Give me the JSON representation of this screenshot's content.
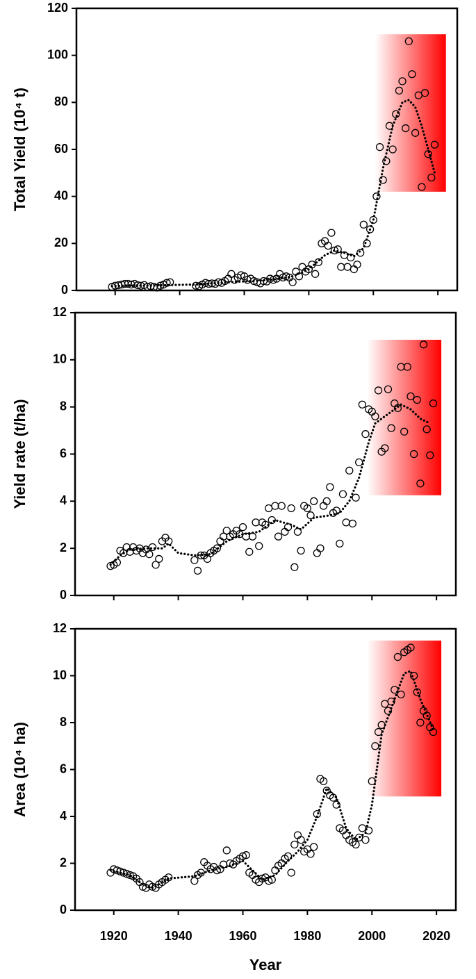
{
  "chart_data": [
    {
      "type": "scatter",
      "ylabel": "Total Yield (10⁴ t)",
      "x": [
        1919,
        1920,
        1921,
        1922,
        1923,
        1924,
        1925,
        1926,
        1927,
        1928,
        1929,
        1930,
        1931,
        1932,
        1933,
        1934,
        1935,
        1936,
        1937,
        1945,
        1946,
        1947,
        1948,
        1949,
        1950,
        1951,
        1952,
        1953,
        1954,
        1955,
        1956,
        1957,
        1958,
        1959,
        1960,
        1961,
        1962,
        1963,
        1964,
        1965,
        1966,
        1967,
        1968,
        1969,
        1970,
        1971,
        1972,
        1973,
        1974,
        1975,
        1976,
        1977,
        1978,
        1979,
        1980,
        1981,
        1982,
        1983,
        1984,
        1985,
        1986,
        1987,
        1988,
        1989,
        1990,
        1991,
        1992,
        1993,
        1994,
        1995,
        1996,
        1997,
        1998,
        1999,
        2000,
        2001,
        2002,
        2003,
        2004,
        2005,
        2006,
        2007,
        2008,
        2009,
        2010,
        2011,
        2012,
        2013,
        2014,
        2015,
        2016,
        2017,
        2018,
        2019
      ],
      "series": [
        {
          "style": "circle",
          "color": "#000000",
          "values": [
            1.5,
            2,
            2.2,
            2.5,
            2.8,
            2.8,
            2.5,
            2.8,
            2.2,
            2,
            2.3,
            1.5,
            1.8,
            1.5,
            1.2,
            2,
            2.5,
            3.2,
            3.5,
            2,
            1.8,
            2.5,
            3.2,
            2.8,
            3,
            2.8,
            3.5,
            3.2,
            4,
            5,
            7,
            4.5,
            5.5,
            6.5,
            6,
            4.5,
            5,
            4,
            3.5,
            3,
            4,
            3.8,
            5,
            4.5,
            5,
            7,
            5.5,
            6,
            5.5,
            3.5,
            8,
            6,
            10,
            8,
            9,
            11,
            7,
            12,
            20,
            21,
            19,
            24.5,
            17,
            17.5,
            10,
            15,
            10,
            14,
            9,
            11,
            16,
            28,
            20,
            26,
            30,
            40,
            61,
            47,
            55,
            70,
            60,
            75,
            85,
            89,
            69,
            106,
            92,
            67,
            83,
            44,
            84,
            58,
            48,
            62
          ]
        },
        {
          "style": "dotted",
          "color": "#000000",
          "x": [
            1919,
            1925,
            1930,
            1937,
            1945,
            1955,
            1965,
            1970,
            1975,
            1980,
            1985,
            1988,
            1991,
            1994,
            1997,
            2000,
            2003,
            2006,
            2009,
            2011,
            2013,
            2015,
            2017,
            2019
          ],
          "values": [
            1.8,
            2.2,
            2,
            2.3,
            2.5,
            3.5,
            4.2,
            4.8,
            6,
            9,
            15,
            17,
            16,
            14.5,
            18,
            30,
            52,
            70,
            80,
            81,
            78,
            70,
            60,
            50
          ]
        }
      ],
      "highlight": {
        "xlim": [
          2000.5,
          2022.5
        ],
        "ylim": [
          42,
          109
        ],
        "color": "#ff0000"
      },
      "xlim": [
        1908,
        2026
      ],
      "ylim": [
        0,
        120
      ],
      "xticks": [
        1920,
        1940,
        1960,
        1980,
        2000,
        2020
      ],
      "yticks": [
        0,
        20,
        40,
        60,
        80,
        100,
        120
      ],
      "xtick_labels": false
    },
    {
      "type": "scatter",
      "ylabel": "Yield rate (t/ha)",
      "x": [
        1919,
        1920,
        1921,
        1922,
        1923,
        1924,
        1925,
        1926,
        1927,
        1928,
        1929,
        1930,
        1931,
        1932,
        1933,
        1934,
        1935,
        1936,
        1937,
        1945,
        1946,
        1947,
        1948,
        1949,
        1950,
        1951,
        1952,
        1953,
        1954,
        1955,
        1956,
        1957,
        1958,
        1959,
        1960,
        1961,
        1962,
        1963,
        1964,
        1965,
        1966,
        1967,
        1968,
        1969,
        1970,
        1971,
        1972,
        1973,
        1974,
        1975,
        1976,
        1977,
        1978,
        1979,
        1980,
        1981,
        1982,
        1983,
        1984,
        1985,
        1986,
        1987,
        1988,
        1989,
        1990,
        1991,
        1992,
        1993,
        1994,
        1995,
        1996,
        1997,
        1998,
        1999,
        2000,
        2001,
        2002,
        2003,
        2004,
        2005,
        2006,
        2007,
        2008,
        2009,
        2010,
        2011,
        2012,
        2013,
        2014,
        2015,
        2016,
        2017,
        2018,
        2019
      ],
      "series": [
        {
          "style": "circle",
          "color": "#000000",
          "values": [
            1.25,
            1.3,
            1.4,
            1.9,
            1.8,
            2.05,
            1.85,
            2.05,
            1.9,
            2.0,
            1.8,
            1.95,
            1.75,
            2.05,
            1.3,
            1.55,
            2.3,
            2.45,
            2.3,
            1.5,
            1.05,
            1.7,
            1.7,
            1.55,
            1.8,
            1.9,
            2.0,
            2.3,
            2.5,
            2.75,
            2.5,
            2.6,
            2.75,
            2.6,
            2.9,
            2.5,
            1.85,
            2.5,
            3.1,
            2.1,
            3.1,
            3.0,
            3.7,
            3.2,
            3.8,
            2.5,
            3.8,
            2.7,
            2.9,
            3.7,
            1.2,
            2.7,
            1.9,
            3.8,
            3.7,
            3.4,
            4.0,
            1.8,
            2.0,
            3.8,
            4.0,
            4.6,
            3.5,
            3.6,
            2.2,
            4.3,
            3.1,
            5.3,
            3.05,
            4.15,
            5.65,
            8.1,
            6.85,
            7.9,
            7.8,
            7.6,
            8.7,
            6.1,
            6.25,
            8.75,
            7.1,
            8.15,
            7.95,
            9.7,
            6.95,
            9.7,
            8.45,
            6.0,
            8.3,
            4.75,
            10.65,
            7.05,
            5.95,
            8.15
          ]
        },
        {
          "style": "dotted",
          "color": "#000000",
          "x": [
            1919,
            1922,
            1925,
            1930,
            1935,
            1937,
            1940,
            1945,
            1950,
            1955,
            1960,
            1965,
            1970,
            1975,
            1978,
            1982,
            1987,
            1990,
            1993,
            1996,
            1999,
            2001,
            2003,
            2006,
            2009,
            2012,
            2015,
            2018
          ],
          "values": [
            1.3,
            1.7,
            1.95,
            2.0,
            2.0,
            2.2,
            1.8,
            1.7,
            1.75,
            2.3,
            2.6,
            2.7,
            3.2,
            3.0,
            2.8,
            3.3,
            3.4,
            3.5,
            4.0,
            5.0,
            6.5,
            7.3,
            7.5,
            7.8,
            8.1,
            7.9,
            7.5,
            7.3
          ]
        }
      ],
      "highlight": {
        "xlim": [
          1998.5,
          2021.5
        ],
        "ylim": [
          4.25,
          10.85
        ],
        "color": "#ff0000"
      },
      "xlim": [
        1908,
        2026
      ],
      "ylim": [
        0,
        12
      ],
      "xticks": [
        1920,
        1940,
        1960,
        1980,
        2000,
        2020
      ],
      "yticks": [
        0,
        2,
        4,
        6,
        8,
        10,
        12
      ],
      "xtick_labels": false
    },
    {
      "type": "scatter",
      "ylabel": "Area (10⁴ ha)",
      "xlabel": "Year",
      "x": [
        1919,
        1920,
        1921,
        1922,
        1923,
        1924,
        1925,
        1926,
        1927,
        1928,
        1929,
        1930,
        1931,
        1932,
        1933,
        1934,
        1935,
        1936,
        1937,
        1945,
        1946,
        1947,
        1948,
        1949,
        1950,
        1951,
        1952,
        1953,
        1954,
        1955,
        1956,
        1957,
        1958,
        1959,
        1960,
        1961,
        1962,
        1963,
        1964,
        1965,
        1966,
        1967,
        1968,
        1969,
        1970,
        1971,
        1972,
        1973,
        1974,
        1975,
        1976,
        1977,
        1978,
        1979,
        1980,
        1981,
        1982,
        1983,
        1984,
        1985,
        1986,
        1987,
        1988,
        1989,
        1990,
        1991,
        1992,
        1993,
        1994,
        1995,
        1996,
        1997,
        1998,
        1999,
        2000,
        2001,
        2002,
        2003,
        2004,
        2005,
        2006,
        2007,
        2008,
        2009,
        2010,
        2011,
        2012,
        2013,
        2014,
        2015,
        2016,
        2017,
        2018,
        2019
      ],
      "series": [
        {
          "style": "circle",
          "color": "#000000",
          "values": [
            1.6,
            1.75,
            1.7,
            1.65,
            1.6,
            1.55,
            1.5,
            1.45,
            1.35,
            1.2,
            1.0,
            0.95,
            1.1,
            1.0,
            0.95,
            1.1,
            1.2,
            1.3,
            1.4,
            1.25,
            1.5,
            1.6,
            2.05,
            1.9,
            1.75,
            1.85,
            1.7,
            1.75,
            1.95,
            2.55,
            2.0,
            1.95,
            2.1,
            2.2,
            2.3,
            2.35,
            1.6,
            1.5,
            1.3,
            1.2,
            1.35,
            1.4,
            1.25,
            1.3,
            1.7,
            1.9,
            2.0,
            2.2,
            2.3,
            1.6,
            2.8,
            3.2,
            3.0,
            2.5,
            2.6,
            2.4,
            2.7,
            4.1,
            5.6,
            5.5,
            5.1,
            4.9,
            4.8,
            4.5,
            3.5,
            3.4,
            3.2,
            3.0,
            2.9,
            2.8,
            3.1,
            3.5,
            3.0,
            3.4,
            5.5,
            7.0,
            7.6,
            7.9,
            8.8,
            8.5,
            8.9,
            9.4,
            10.8,
            9.2,
            11.0,
            11.1,
            11.2,
            10.0,
            9.3,
            8.0,
            8.5,
            8.3,
            7.8,
            7.6
          ]
        },
        {
          "style": "dotted",
          "color": "#000000",
          "x": [
            1919,
            1925,
            1929,
            1932,
            1937,
            1945,
            1950,
            1955,
            1960,
            1963,
            1966,
            1970,
            1974,
            1977,
            1980,
            1983,
            1986,
            1989,
            1992,
            1995,
            1998,
            2000,
            2003,
            2007,
            2010,
            2012,
            2015,
            2019
          ],
          "values": [
            1.7,
            1.5,
            1.1,
            0.95,
            1.35,
            1.45,
            1.7,
            1.85,
            2.1,
            1.7,
            1.3,
            1.5,
            2.1,
            2.5,
            3.0,
            4.0,
            5.2,
            4.8,
            3.5,
            3.0,
            3.3,
            4.5,
            7.5,
            9.0,
            10.1,
            10.2,
            9.0,
            7.7
          ]
        }
      ],
      "highlight": {
        "xlim": [
          1998.5,
          2021.5
        ],
        "ylim": [
          4.85,
          11.5
        ],
        "color": "#ff0000"
      },
      "xlim": [
        1908,
        2026
      ],
      "ylim": [
        0,
        12
      ],
      "xticks": [
        1920,
        1940,
        1960,
        1980,
        2000,
        2020
      ],
      "yticks": [
        0,
        2,
        4,
        6,
        8,
        10,
        12
      ],
      "xtick_labels": true
    }
  ]
}
